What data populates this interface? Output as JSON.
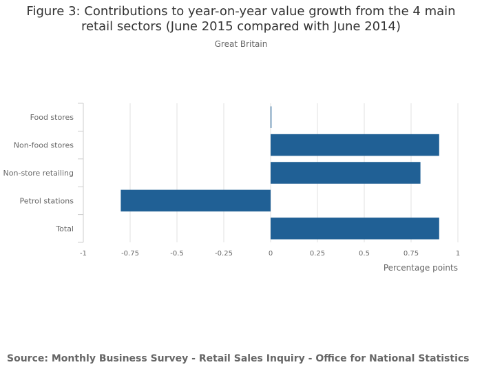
{
  "chart_data": {
    "type": "bar",
    "orientation": "horizontal",
    "title": "Figure 3: Contributions to year-on-year value growth from the 4 main retail sectors (June 2015 compared with June 2014)",
    "subtitle": "Great Britain",
    "categories": [
      "Food stores",
      "Non-food stores",
      "Non-store retailing",
      "Petrol stations",
      "Total"
    ],
    "values": [
      0.0,
      0.9,
      0.8,
      -0.8,
      0.9
    ],
    "xlabel": "Percentage points",
    "xlim": [
      -1,
      1
    ],
    "xticks": [
      -1,
      -0.75,
      -0.5,
      -0.25,
      0,
      0.25,
      0.5,
      0.75,
      1
    ],
    "xtick_labels": [
      "-1",
      "-0.75",
      "-0.5",
      "-0.25",
      "0",
      "0.25",
      "0.5",
      "0.75",
      "1"
    ],
    "grid": true,
    "bar_color": "#206095",
    "grid_color": "#e0e0e0"
  },
  "source": "Source: Monthly Business Survey - Retail Sales Inquiry - Office for National Statistics"
}
